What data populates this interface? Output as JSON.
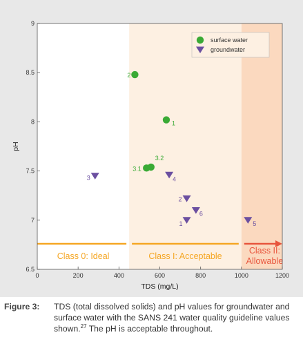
{
  "chart_data": {
    "type": "scatter",
    "x_label": "TDS (mg/L)",
    "y_label": "pH",
    "xlim": [
      0,
      1200
    ],
    "ylim": [
      6.5,
      9
    ],
    "x_ticks": [
      "0",
      "200",
      "400",
      "600",
      "800",
      "1000",
      "1200"
    ],
    "y_ticks": [
      "6.5",
      "7",
      "7.5",
      "8",
      "8.5",
      "9"
    ],
    "grid": false,
    "legend_position": "top-right",
    "series": [
      {
        "name": "surface water",
        "marker": "circle",
        "color": "#3aaa35",
        "label_color": "#3aaa35",
        "points": [
          {
            "label": "1",
            "x": 632,
            "y": 8.02
          },
          {
            "label": "2",
            "x": 478,
            "y": 8.48
          },
          {
            "label": "3.1",
            "x": 535,
            "y": 7.53
          },
          {
            "label": "3.2",
            "x": 557,
            "y": 7.54
          }
        ]
      },
      {
        "name": "groundwater",
        "marker": "triangle-down",
        "color": "#6b4fa0",
        "label_color": "#6b4fa0",
        "points": [
          {
            "label": "1",
            "x": 732,
            "y": 7.0
          },
          {
            "label": "2",
            "x": 732,
            "y": 7.22
          },
          {
            "label": "3",
            "x": 283,
            "y": 7.45
          },
          {
            "label": "4",
            "x": 646,
            "y": 7.46
          },
          {
            "label": "5",
            "x": 1032,
            "y": 7.0
          },
          {
            "label": "6",
            "x": 777,
            "y": 7.1
          }
        ]
      }
    ],
    "classes": [
      {
        "label": "Class 0: Ideal",
        "from": 0,
        "to": 450,
        "fill": "#ffffff",
        "line_color": "#f5a623",
        "text_color": "#f5a623"
      },
      {
        "label": "Class I: Acceptable",
        "from": 450,
        "to": 1000,
        "fill": "#fdf0e2",
        "line_color": "#f5a623",
        "text_color": "#f5a623"
      },
      {
        "label_lines": [
          "Class II:",
          "Allowable"
        ],
        "from": 1000,
        "to": 1200,
        "fill": "#fbd9bf",
        "line_color": "#e8553d",
        "text_color": "#e8553d"
      }
    ],
    "class_line_y": 6.76
  },
  "caption": {
    "label": "Figure 3:",
    "lines": [
      "TDS (total dissolved solids) and pH values for groundwater and",
      "surface water with the SANS 241 water quality guideline values",
      "The pH is acceptable throughout."
    ],
    "line3_lead": "shown.",
    "footnote": "27"
  }
}
